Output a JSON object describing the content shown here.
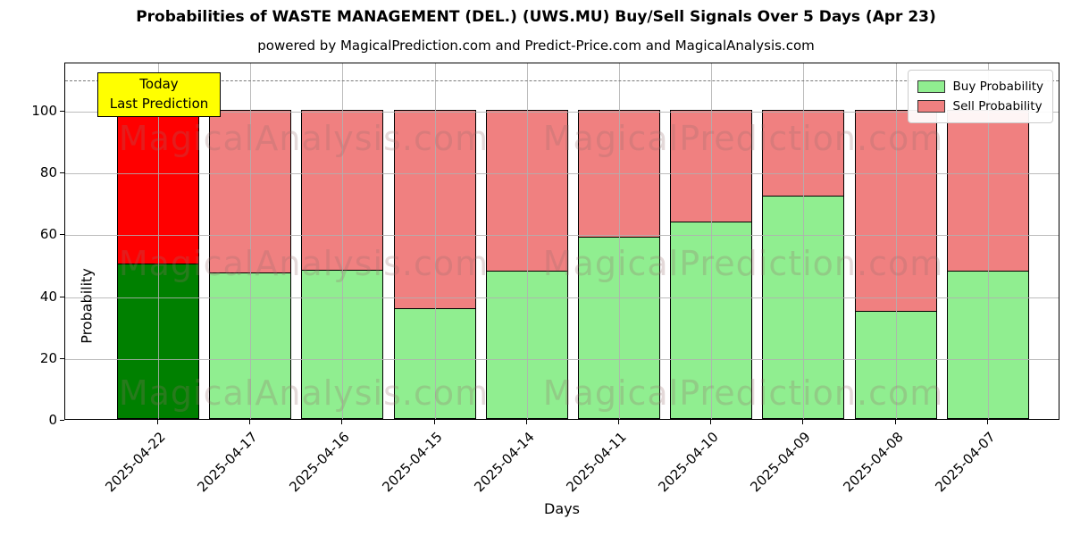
{
  "title": "Probabilities of WASTE MANAGEMENT (DEL.) (UWS.MU) Buy/Sell Signals Over 5 Days (Apr 23)",
  "subtitle": "powered by MagicalPrediction.com and Predict-Price.com and MagicalAnalysis.com",
  "annotation": {
    "line1": "Today",
    "line2": "Last Prediction",
    "bg_color": "#ffff00"
  },
  "watermarks": {
    "left": "MagicalAnalysis.com",
    "right": "MagicalPrediction.com"
  },
  "legend": [
    {
      "label": "Buy Probability",
      "color": "#90ee90"
    },
    {
      "label": "Sell Probability",
      "color": "#f08080"
    }
  ],
  "colors": {
    "today_buy": "#008000",
    "today_sell": "#ff0000",
    "buy": "#90ee90",
    "sell": "#f08080",
    "bar_edge": "#000000",
    "grid": "#b0b0b0",
    "dashed_line": "#7a7a7a"
  },
  "chart_data": {
    "type": "bar",
    "stacked": true,
    "title": "Probabilities of WASTE MANAGEMENT (DEL.) (UWS.MU) Buy/Sell Signals Over 5 Days (Apr 23)",
    "categories": [
      "2025-04-22",
      "2025-04-17",
      "2025-04-16",
      "2025-04-15",
      "2025-04-14",
      "2025-04-11",
      "2025-04-10",
      "2025-04-09",
      "2025-04-08",
      "2025-04-07"
    ],
    "series": [
      {
        "name": "Buy Probability",
        "values": [
          50.5,
          47.5,
          48.5,
          36,
          48,
          59,
          64,
          72.5,
          35,
          48
        ],
        "colors": [
          "#008000",
          "#90ee90",
          "#90ee90",
          "#90ee90",
          "#90ee90",
          "#90ee90",
          "#90ee90",
          "#90ee90",
          "#90ee90",
          "#90ee90"
        ]
      },
      {
        "name": "Sell Probability",
        "values": [
          49.5,
          52.5,
          51.5,
          64,
          52,
          41,
          36,
          27.5,
          65,
          52
        ],
        "colors": [
          "#ff0000",
          "#f08080",
          "#f08080",
          "#f08080",
          "#f08080",
          "#f08080",
          "#f08080",
          "#f08080",
          "#f08080",
          "#f08080"
        ]
      }
    ],
    "xlabel": "Days",
    "ylabel": "Probability",
    "ylim": [
      0,
      115.6
    ],
    "y_ticks": [
      0,
      20,
      40,
      60,
      80,
      100
    ],
    "grid": true,
    "grid_above_bars": true,
    "legend_position": "upper right",
    "threshold_line": {
      "y": 110,
      "style": "dashed"
    }
  }
}
